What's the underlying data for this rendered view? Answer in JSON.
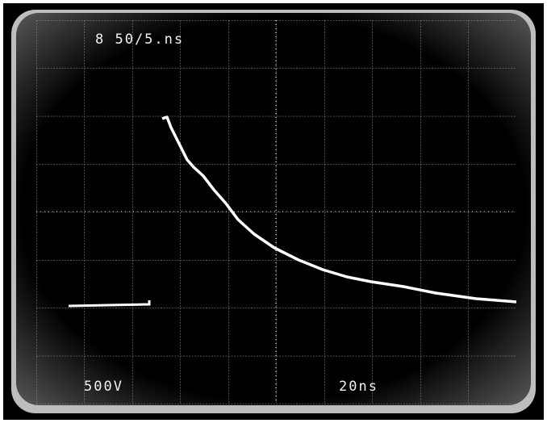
{
  "screen": {
    "header": "8 50/5.ns",
    "vertical_scale": "500V",
    "time_scale": "20ns"
  }
}
